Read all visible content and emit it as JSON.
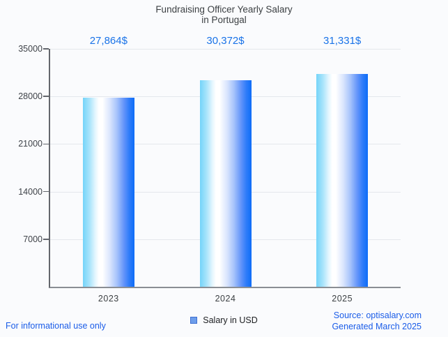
{
  "title_line1": "Fundraising Officer Yearly Salary",
  "title_line2": "in Portugal",
  "legend": {
    "label": "Salary in USD",
    "swatch_color": "#6d9eeb",
    "swatch_border": "#3e6fd1"
  },
  "footer": {
    "left": "For informational use only",
    "source": "Source: optisalary.com",
    "generated": "Generated March 2025"
  },
  "colors": {
    "background": "#fafbfd",
    "title_text": "#3c4043",
    "axis_text": "#3f4349",
    "value_label_blue": "#1a73e8",
    "footer_link_blue": "#1a5ce8",
    "gridline": "#e4e7ec",
    "y_axis_line": "#63666c",
    "x_axis_line": "#8a8e94",
    "bar_gradient_left": "#74d4f9",
    "bar_gradient_middle": "#ffffff",
    "bar_gradient_right": "#0d6cf8"
  },
  "chart_data": {
    "type": "bar",
    "title": "Fundraising Officer Yearly Salary in Portugal",
    "categories": [
      "2023",
      "2024",
      "2025"
    ],
    "values": [
      27864,
      30372,
      31331
    ],
    "value_labels": [
      "27,864$",
      "30,372$",
      "31,331$"
    ],
    "series_name": "Salary in USD",
    "xlabel": "",
    "ylabel": "",
    "ylim": [
      0,
      35000
    ],
    "yticks": [
      7000,
      14000,
      21000,
      28000,
      35000
    ],
    "grid": "horizontal",
    "legend_position": "bottom"
  }
}
